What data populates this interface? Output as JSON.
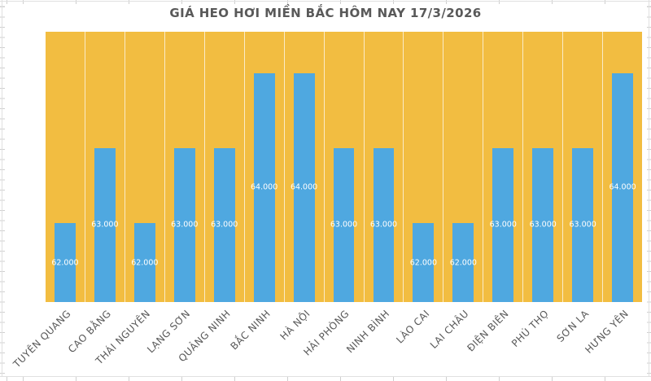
{
  "page": {
    "background": "#FFFFFF"
  },
  "chart_data": {
    "type": "bar",
    "title": "GIÁ HEO HƠI MIỀN BẮC HÔM NAY 17/3/2026",
    "categories": [
      "TUYÊN QUANG",
      "CAO BẰNG",
      "THÁI NGUYÊN",
      "LẠNG SƠN",
      "QUẢNG NINH",
      "BẮC NINH",
      "HÀ NỘI",
      "HẢI PHÒNG",
      "NINH BÌNH",
      "LÀO CAI",
      "LAI CHÂU",
      "ĐIỆN BIÊN",
      "PHÚ THỌ",
      "SƠN LA",
      "HƯNG YÊN"
    ],
    "values": [
      62000,
      63000,
      62000,
      63000,
      63000,
      64000,
      64000,
      63000,
      63000,
      62000,
      62000,
      63000,
      63000,
      63000,
      64000
    ],
    "value_labels": [
      "62.000",
      "63.000",
      "62.000",
      "63.000",
      "63.000",
      "64.000",
      "64.000",
      "63.000",
      "63.000",
      "62.000",
      "62.000",
      "63.000",
      "63.000",
      "63.000",
      "64.000"
    ],
    "xlabel": "",
    "ylabel": "",
    "ylim": [
      60950,
      64550
    ],
    "legend": "none",
    "grid": "vertical category separators only",
    "data_label_position": "center of bar",
    "category_label_rotation_deg": -45
  },
  "colors": {
    "bar_fill": "#4FA8E0",
    "plot_background": "#F2BD41",
    "title_text": "#595959",
    "axis_text": "#595959",
    "data_label_text": "#FFFFFF",
    "sheet_gridline": "#E0E0E0",
    "category_separator": "rgba(255,255,255,0.7)"
  }
}
